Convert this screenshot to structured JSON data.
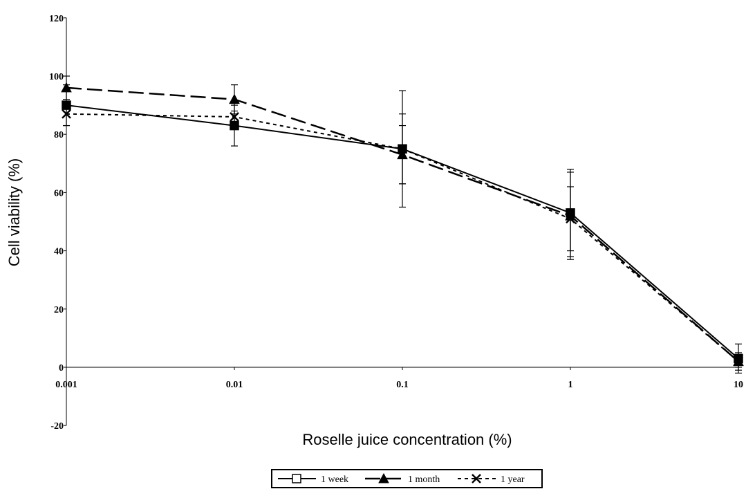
{
  "chart_data": {
    "type": "line",
    "title": "",
    "xlabel": "Roselle juice concentration (%)",
    "ylabel": "Cell viability (%)",
    "x_scale": "log",
    "x": [
      0.001,
      0.01,
      0.1,
      1,
      10
    ],
    "x_tick_labels": [
      "0.001",
      "0.01",
      "0.1",
      "1",
      "10"
    ],
    "ylim": [
      -20,
      120
    ],
    "y_ticks": [
      -20,
      0,
      20,
      40,
      60,
      80,
      100,
      120
    ],
    "y_tick_labels": [
      "-20",
      "0",
      "20",
      "40",
      "60",
      "80",
      "100",
      "120"
    ],
    "grid": false,
    "legend_position": "bottom-center",
    "series": [
      {
        "name": "1 week",
        "marker": "square",
        "line_style": "solid",
        "color": "#000000",
        "values": [
          90,
          83,
          75,
          53,
          3
        ],
        "error": [
          7,
          7,
          20,
          15,
          5
        ]
      },
      {
        "name": "1 month",
        "marker": "triangle",
        "line_style": "long-dash",
        "color": "#000000",
        "values": [
          96,
          92,
          73,
          52,
          2
        ],
        "error": [
          4,
          5,
          10,
          15,
          3
        ]
      },
      {
        "name": "1 year",
        "marker": "x",
        "line_style": "short-dash",
        "color": "#000000",
        "values": [
          87,
          86,
          75,
          51,
          2
        ],
        "error": [
          4,
          2,
          12,
          11,
          2
        ]
      }
    ]
  }
}
